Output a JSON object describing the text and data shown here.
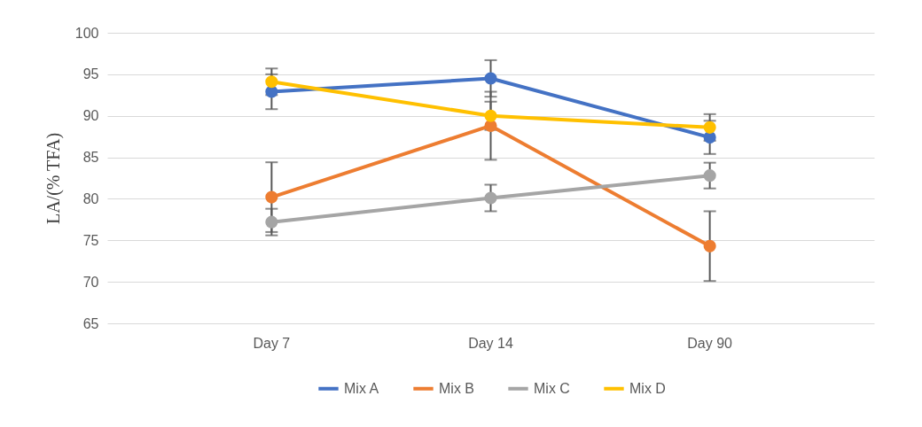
{
  "chart_data": {
    "type": "line",
    "ylabel": "LA/(% TFA)",
    "categories": [
      "Day 7",
      "Day 14",
      "Day 90"
    ],
    "series": [
      {
        "name": "Mix A",
        "color": "#4472c4",
        "values": [
          92.9,
          94.5,
          87.4
        ],
        "errors": [
          2.1,
          2.2,
          2.0
        ]
      },
      {
        "name": "Mix B",
        "color": "#ed7d31",
        "values": [
          80.2,
          88.8,
          74.3
        ],
        "errors": [
          4.2,
          4.1,
          4.2
        ]
      },
      {
        "name": "Mix C",
        "color": "#a5a5a5",
        "values": [
          77.2,
          80.1,
          82.8
        ],
        "errors": [
          1.6,
          1.6,
          1.55
        ]
      },
      {
        "name": "Mix D",
        "color": "#ffc000",
        "values": [
          94.1,
          90.0,
          88.6
        ],
        "errors": [
          1.6,
          1.7,
          1.6
        ]
      }
    ],
    "ylim": [
      65,
      100
    ],
    "yticks": [
      65,
      70,
      75,
      80,
      85,
      90,
      95,
      100
    ],
    "grid": "y",
    "legend": "bottom",
    "marker": "circle",
    "line_style": "solid"
  }
}
